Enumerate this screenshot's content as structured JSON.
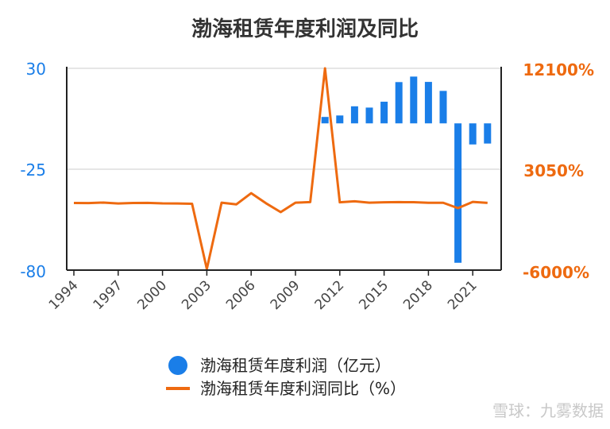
{
  "chart_data": {
    "type": "bar+line",
    "title": "渤海租赁年度利润及同比",
    "x": [
      1994,
      1995,
      1996,
      1997,
      1998,
      1999,
      2000,
      2001,
      2002,
      2003,
      2004,
      2005,
      2006,
      2007,
      2008,
      2009,
      2010,
      2011,
      2012,
      2013,
      2014,
      2015,
      2016,
      2017,
      2018,
      2019,
      2020,
      2021,
      2022
    ],
    "x_tick_labels": [
      "1994",
      "1997",
      "2000",
      "2003",
      "2006",
      "2009",
      "2012",
      "2015",
      "2018",
      "2021"
    ],
    "y_left": {
      "ticks": [
        "30",
        "-25",
        "-80"
      ],
      "range": [
        -80,
        30
      ]
    },
    "y_right": {
      "ticks": [
        "12100%",
        "3050%",
        "-6000%"
      ],
      "range": [
        -6000,
        12100
      ]
    },
    "grid": true,
    "legend_position": "bottom",
    "series": [
      {
        "name": "渤海租赁年度利润（亿元）",
        "type": "bar",
        "axis": "left",
        "color": "#1a7ee8",
        "values": [
          null,
          null,
          null,
          null,
          null,
          null,
          null,
          null,
          null,
          null,
          null,
          null,
          null,
          null,
          null,
          null,
          null,
          3.5,
          4.3,
          9.3,
          8.6,
          11.8,
          22.5,
          25.5,
          22.6,
          17.7,
          -76.0,
          -11.5,
          -11.0
        ]
      },
      {
        "name": "渤海租赁年度利润同比（%）",
        "type": "line",
        "axis": "right",
        "color": "#ee6a10",
        "values": [
          20,
          10,
          60,
          -20,
          20,
          30,
          -10,
          -20,
          -50,
          -5900,
          50,
          -100,
          900,
          0,
          -800,
          50,
          100,
          12100,
          80,
          170,
          50,
          80,
          100,
          90,
          40,
          40,
          -440,
          120,
          30
        ]
      }
    ],
    "legend": [
      "渤海租赁年度利润（亿元）",
      "渤海租赁年度利润同比（%）"
    ]
  },
  "watermark": "雪球：九雾数据",
  "colors": {
    "bar": "#1a7ee8",
    "line": "#ee6a10",
    "grid": "#dddddd",
    "axis": "#222222"
  }
}
